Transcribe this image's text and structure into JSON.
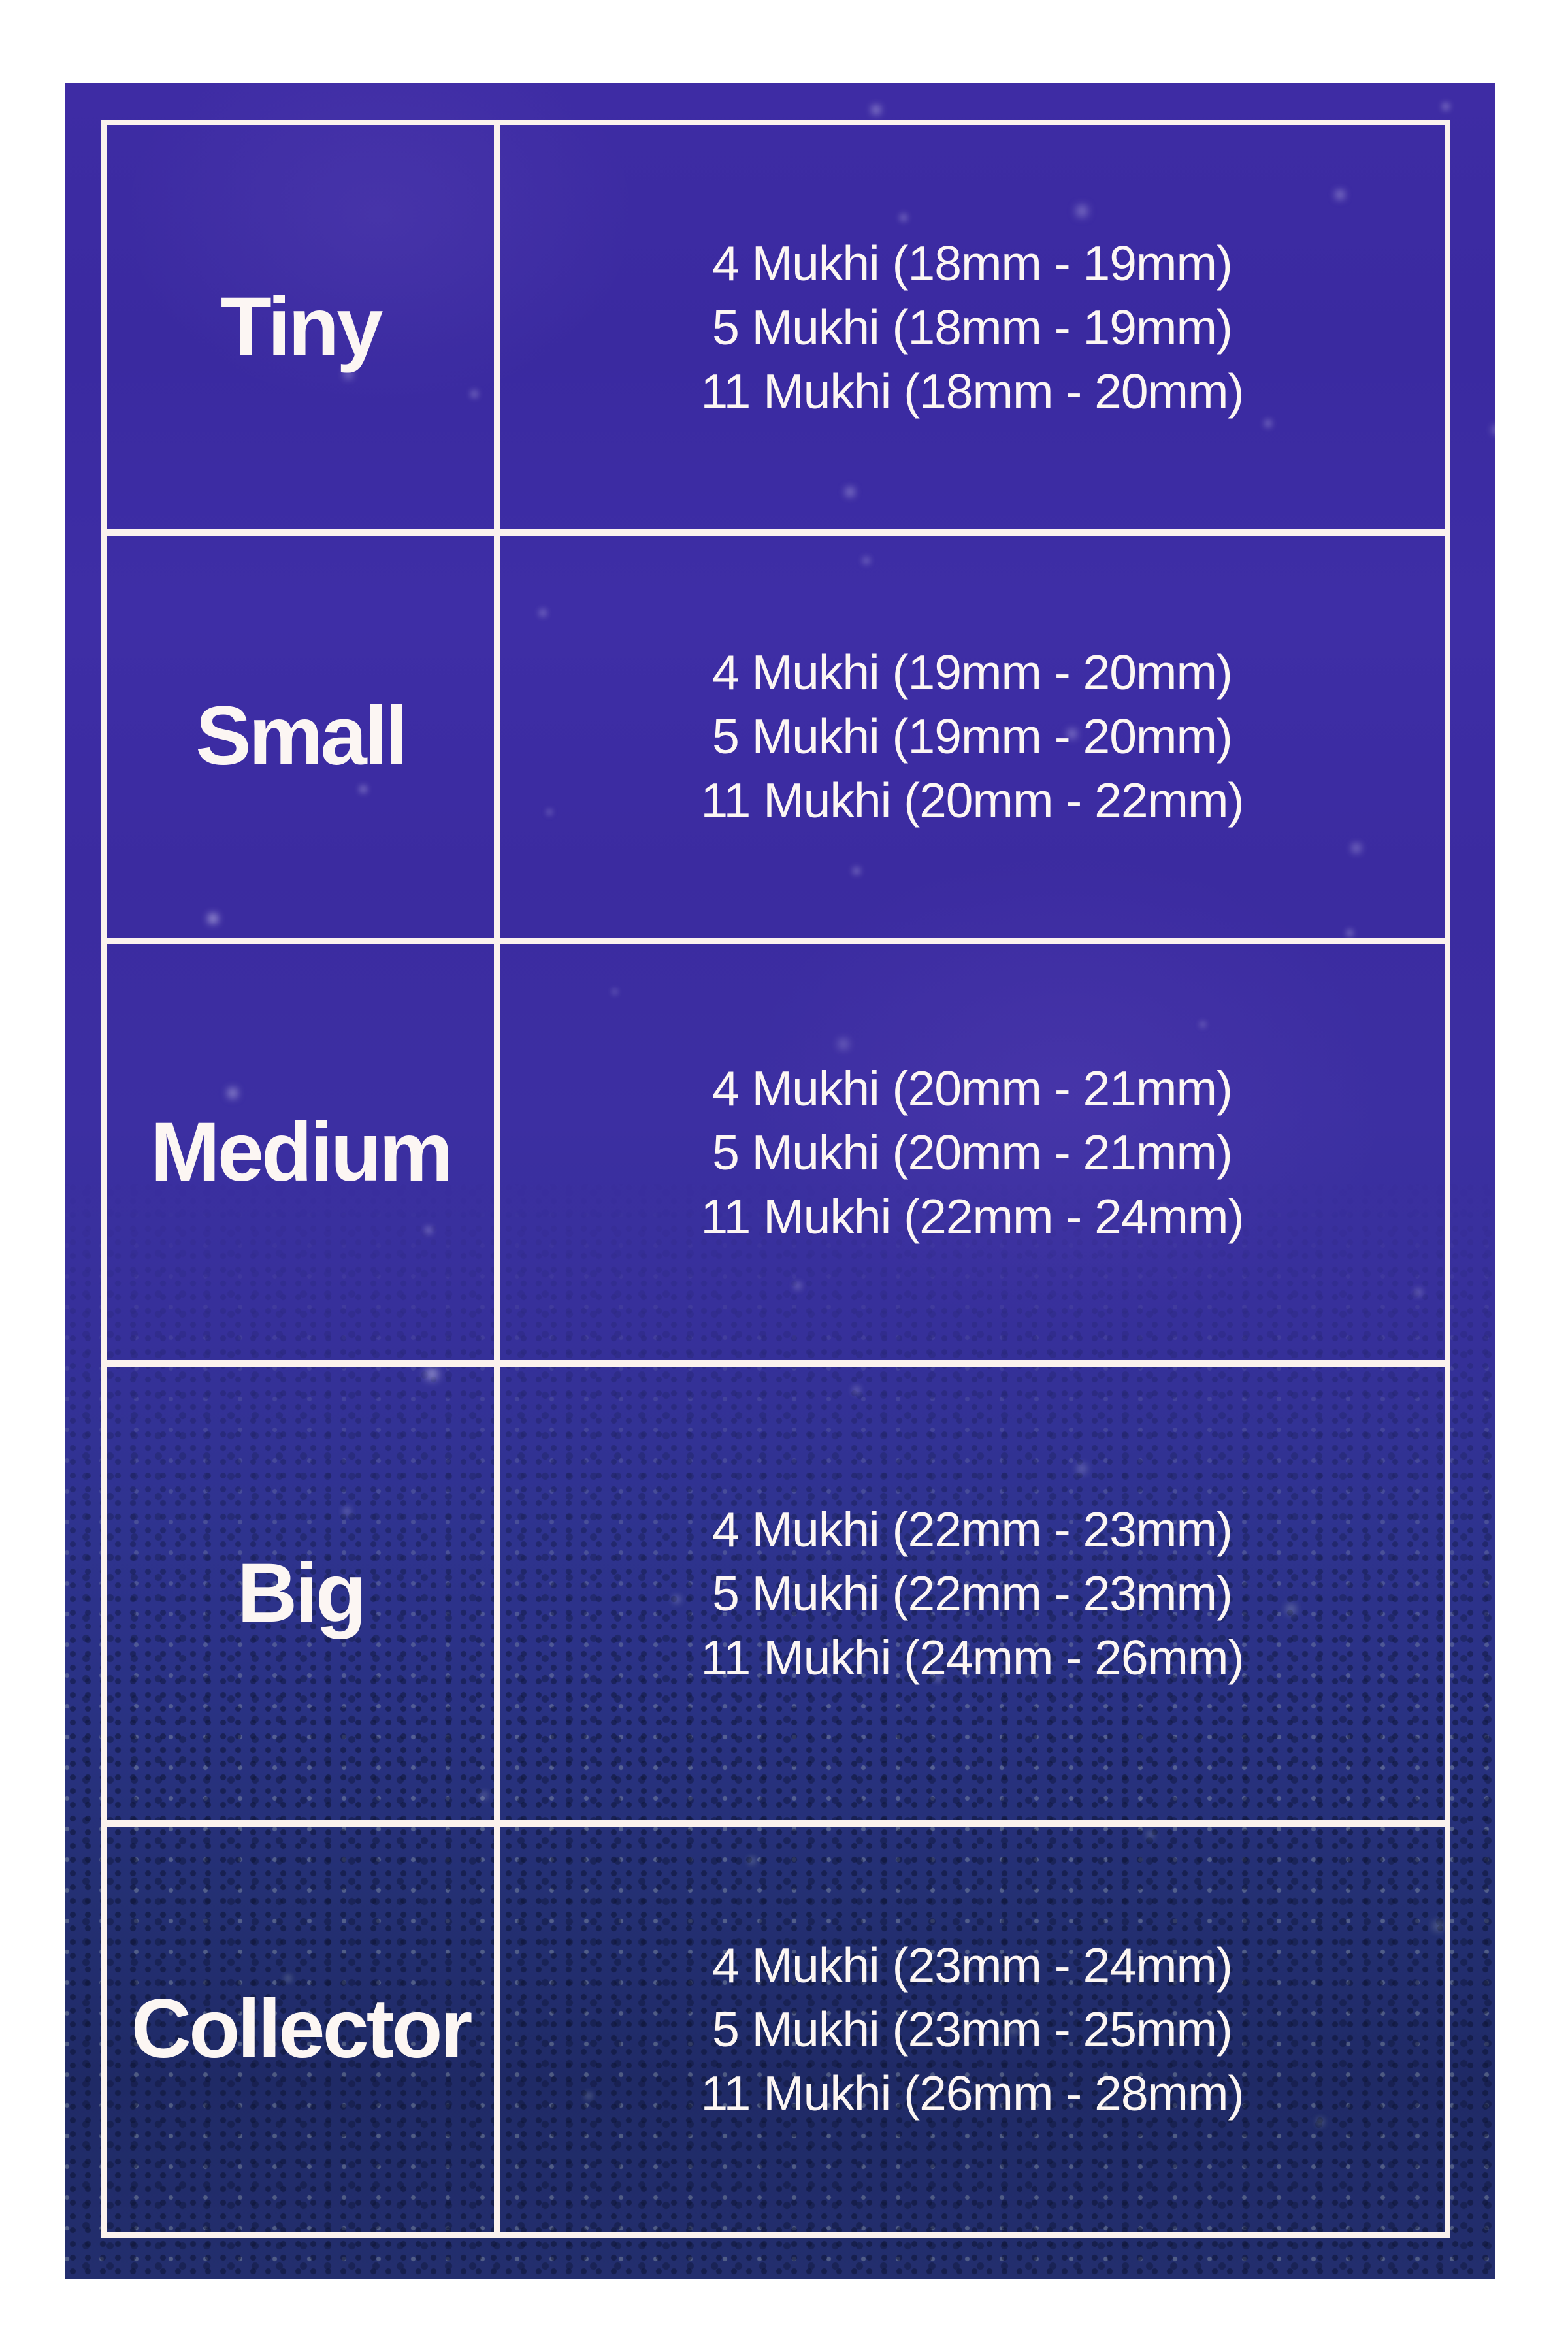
{
  "style": {
    "page_background": "#ffffff",
    "panel_purple_top": "#3e2ca4",
    "panel_blue_bottom": "#1f2a66",
    "grid_line_color": "#fbf2ee",
    "text_color": "#fcf6f3"
  },
  "chart_data": {
    "type": "table",
    "has_header_row": false,
    "columns": [
      "size_category",
      "bead_size_specs"
    ],
    "rows": [
      {
        "size": "Tiny",
        "specs": [
          "4 Mukhi (18mm - 19mm)",
          "5 Mukhi (18mm - 19mm)",
          "11 Mukhi (18mm - 20mm)"
        ]
      },
      {
        "size": "Small",
        "specs": [
          "4 Mukhi (19mm - 20mm)",
          "5 Mukhi (19mm - 20mm)",
          "11 Mukhi (20mm - 22mm)"
        ]
      },
      {
        "size": "Medium",
        "specs": [
          "4 Mukhi (20mm - 21mm)",
          "5 Mukhi (20mm - 21mm)",
          "11 Mukhi (22mm - 24mm)"
        ]
      },
      {
        "size": "Big",
        "specs": [
          "4 Mukhi (22mm - 23mm)",
          "5 Mukhi (22mm - 23mm)",
          "11 Mukhi (24mm - 26mm)"
        ]
      },
      {
        "size": "Collector",
        "specs": [
          "4 Mukhi (23mm - 24mm)",
          "5 Mukhi (23mm - 25mm)",
          "11 Mukhi (26mm - 28mm)"
        ]
      }
    ]
  }
}
